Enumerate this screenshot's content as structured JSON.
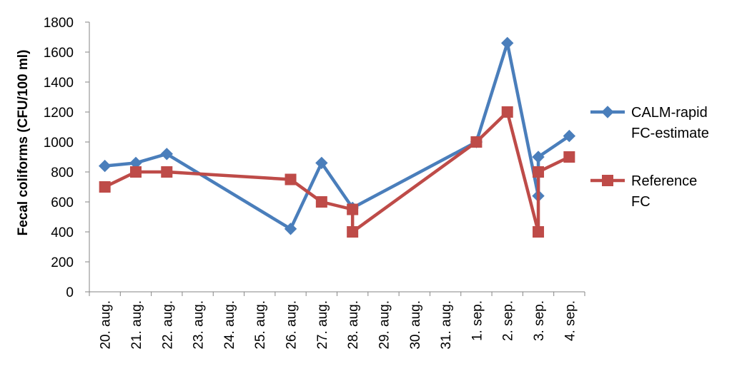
{
  "chart_data": {
    "type": "line",
    "ylabel": "Fecal coliforms (CFU/100 ml)",
    "xlabel": "",
    "ylim": [
      0,
      1800
    ],
    "yticks": [
      0,
      200,
      400,
      600,
      800,
      1000,
      1200,
      1400,
      1600,
      1800
    ],
    "categories": [
      "20. aug.",
      "21. aug.",
      "22. aug.",
      "23. aug.",
      "24. aug.",
      "25. aug.",
      "26. aug.",
      "27. aug.",
      "28. aug.",
      "29. aug.",
      "30. aug.",
      "31. aug.",
      "1. sep.",
      "2. sep.",
      "3. sep.",
      "4. sep."
    ],
    "grid": false,
    "legend_position": "right",
    "series": [
      {
        "name_lines": [
          "CALM-rapid",
          "FC-estimate"
        ],
        "color": "#4a7ebb",
        "marker": "diamond",
        "points": [
          {
            "x": 0,
            "y": 840
          },
          {
            "x": 1,
            "y": 860
          },
          {
            "x": 2,
            "y": 920
          },
          {
            "x": 6,
            "y": 420
          },
          {
            "x": 7,
            "y": 860
          },
          {
            "x": 8,
            "y": 560
          },
          {
            "x": 12,
            "y": 1000
          },
          {
            "x": 13,
            "y": 1660
          },
          {
            "x": 14,
            "y": 640
          },
          {
            "x": 14,
            "y": 900
          },
          {
            "x": 15,
            "y": 1040
          }
        ]
      },
      {
        "name_lines": [
          "Reference",
          "FC"
        ],
        "color": "#be4b48",
        "marker": "square",
        "points": [
          {
            "x": 0,
            "y": 700
          },
          {
            "x": 1,
            "y": 800
          },
          {
            "x": 2,
            "y": 800
          },
          {
            "x": 6,
            "y": 750
          },
          {
            "x": 7,
            "y": 600
          },
          {
            "x": 8,
            "y": 550
          },
          {
            "x": 8,
            "y": 400
          },
          {
            "x": 12,
            "y": 1000
          },
          {
            "x": 13,
            "y": 1200
          },
          {
            "x": 14,
            "y": 400
          },
          {
            "x": 14,
            "y": 800
          },
          {
            "x": 15,
            "y": 900
          }
        ]
      }
    ]
  }
}
